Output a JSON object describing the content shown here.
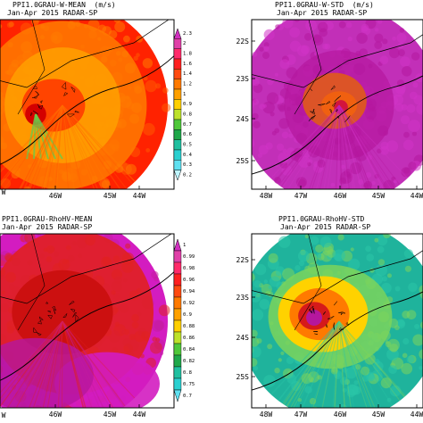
{
  "panels": [
    {
      "id": "w-mean",
      "title_line1": "PPI1.0GRAU-W-MEAN  (m/s)",
      "title_line2": "Jan-Apr 2015 RADAR-SP",
      "x_ticks": [
        "46W",
        "45W",
        "44W"
      ],
      "y_ticks": [],
      "palette": [
        "#ff2200",
        "#ff5a00",
        "#ff7b00",
        "#ffa000",
        "#ff4400",
        "#d40000"
      ],
      "scheme": "mean"
    },
    {
      "id": "w-std",
      "title_line1": "PPI1.0GRAU-W-STD  (m/s)",
      "title_line2": "Jan-Apr 2015 RADAR-SP",
      "x_ticks": [
        "48W",
        "47W",
        "46W",
        "45W",
        "44W"
      ],
      "y_ticks": [
        "22S",
        "23S",
        "24S",
        "25S"
      ],
      "palette": [
        "#c22fb8",
        "#d233c6",
        "#b5179e",
        "#e05a1a",
        "#f06010",
        "#d3153c"
      ],
      "scheme": "std"
    },
    {
      "id": "rhohv-mean",
      "title_line1": "PPI1.0GRAU-RhoHV-MEAN",
      "title_line2": "Jan-Apr 2015 RADAR-SP",
      "x_ticks": [
        "46W",
        "45W",
        "44W"
      ],
      "y_ticks": [],
      "palette": [
        "#d31cc0",
        "#c41d9e",
        "#e02020",
        "#cc1010",
        "#b5179e",
        "#ff3300"
      ],
      "scheme": "rmean"
    },
    {
      "id": "rhohv-std",
      "title_line1": "PPI1.0GRAU-RhoHV-STD",
      "title_line2": "Jan-Apr 2015 RADAR-SP",
      "x_ticks": [
        "48W",
        "47W",
        "46W",
        "45W",
        "44W"
      ],
      "y_ticks": [
        "22S",
        "23S",
        "24S",
        "25S"
      ],
      "palette": [
        "#1fb39c",
        "#29c4a7",
        "#7bd35c",
        "#ffd200",
        "#ff7a00",
        "#d61a1a"
      ],
      "scheme": "rstd"
    }
  ],
  "colorbars": [
    {
      "id": "cb-w",
      "labels": [
        "2.3",
        "2",
        "1.8",
        "1.6",
        "1.4",
        "1.2",
        "1",
        "0.9",
        "0.8",
        "0.7",
        "0.6",
        "0.5",
        "0.4",
        "0.3",
        "0.2"
      ],
      "colors": [
        "#d12fc0",
        "#e040a8",
        "#ff2a6a",
        "#ff2020",
        "#ff4a10",
        "#ff7a00",
        "#ffa000",
        "#ffd000",
        "#bde22a",
        "#4fc83a",
        "#1fa84a",
        "#20c0a0",
        "#2ad0d0",
        "#5fe0f0",
        "#bff5ff"
      ]
    },
    {
      "id": "cb-rho",
      "labels": [
        "1",
        "0.99",
        "0.98",
        "0.96",
        "0.94",
        "0.92",
        "0.9",
        "0.88",
        "0.86",
        "0.84",
        "0.82",
        "0.8",
        "0.75",
        "0.7"
      ],
      "colors": [
        "#d12fc0",
        "#e040a8",
        "#ff2a6a",
        "#ff2020",
        "#ff4a10",
        "#ff7a00",
        "#ffa000",
        "#ffd000",
        "#bde22a",
        "#4fc83a",
        "#1fa84a",
        "#20c0a0",
        "#2ad0d0",
        "#5fe0f0"
      ]
    }
  ],
  "chart_data": [
    {
      "type": "heatmap",
      "title": "PPI1.0GRAU-W-MEAN (m/s)",
      "subtitle": "Jan-Apr 2015 RADAR-SP",
      "x_tick_labels": [
        "46W",
        "45W",
        "44W"
      ]
    },
    {
      "type": "heatmap",
      "title": "PPI1.0GRAU-W-STD (m/s)",
      "subtitle": "Jan-Apr 2015 RADAR-SP",
      "x_tick_labels": [
        "48W",
        "47W",
        "46W",
        "45W",
        "44W"
      ],
      "y_tick_labels": [
        "22S",
        "23S",
        "24S",
        "25S"
      ]
    },
    {
      "type": "heatmap",
      "title": "PPI1.0GRAU-RhoHV-MEAN",
      "subtitle": "Jan-Apr 2015 RADAR-SP",
      "x_tick_labels": [
        "46W",
        "45W",
        "44W"
      ]
    },
    {
      "type": "heatmap",
      "title": "PPI1.0GRAU-RhoHV-STD",
      "subtitle": "Jan-Apr 2015 RADAR-SP",
      "x_tick_labels": [
        "48W",
        "47W",
        "46W",
        "45W",
        "44W"
      ],
      "y_tick_labels": [
        "22S",
        "23S",
        "24S",
        "25S"
      ]
    }
  ]
}
